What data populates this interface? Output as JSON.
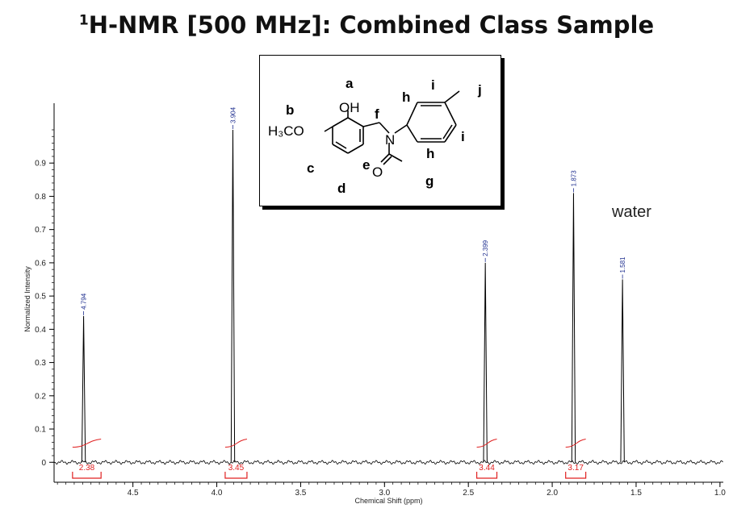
{
  "title": {
    "superscript": "1",
    "text": "H-NMR [500 MHz]:  Combined Class Sample"
  },
  "annotation": {
    "water": "water"
  },
  "structure": {
    "labels": {
      "a": "a",
      "b": "b",
      "c": "c",
      "d": "d",
      "e": "e",
      "f": "f",
      "g": "g",
      "h1": "h",
      "h2": "h",
      "i1": "i",
      "i2": "i",
      "j": "j"
    },
    "atoms": {
      "oh": "OH",
      "h3co": "H₃CO",
      "n": "N",
      "o": "O"
    }
  },
  "chart_data": {
    "type": "line",
    "title": "",
    "xlabel": "Chemical Shift (ppm)",
    "ylabel": "Normalized Intensity",
    "xlim": [
      4.97,
      0.98
    ],
    "ylim": [
      -0.06,
      1.08
    ],
    "x_reversed": true,
    "x_ticks": [
      4.5,
      4.0,
      3.5,
      3.0,
      2.5,
      2.0,
      1.5,
      1.0
    ],
    "x_tick_labels": [
      "4.5",
      "4.0",
      "3.5",
      "3.0",
      "2.5",
      "2.0",
      "1.5",
      "1.0"
    ],
    "y_ticks": [
      0,
      0.1,
      0.2,
      0.3,
      0.4,
      0.5,
      0.6,
      0.7,
      0.8,
      0.9
    ],
    "y_tick_labels": [
      "0",
      "0.1",
      "0.2",
      "0.3",
      "0.4",
      "0.5",
      "0.6",
      "0.7",
      "0.8",
      "0.9"
    ],
    "peaks": [
      {
        "ppm": 4.794,
        "label": "4.794",
        "height": 0.44
      },
      {
        "ppm": 3.904,
        "label": "3.904",
        "height": 1.0
      },
      {
        "ppm": 2.399,
        "label": "2.399",
        "height": 0.6
      },
      {
        "ppm": 1.873,
        "label": "1.873",
        "height": 0.81
      },
      {
        "ppm": 1.581,
        "label": "1.581",
        "height": 0.55
      }
    ],
    "integrals": [
      {
        "from": 4.86,
        "to": 4.69,
        "value": "2.38"
      },
      {
        "from": 3.95,
        "to": 3.82,
        "value": "3.45"
      },
      {
        "from": 2.45,
        "to": 2.33,
        "value": "3.44"
      },
      {
        "from": 1.92,
        "to": 1.8,
        "value": "3.17"
      }
    ],
    "colors": {
      "spectrum": "#000000",
      "peak_label": "#1f2f8f",
      "integral": "#e02020",
      "axis": "#000000"
    }
  }
}
